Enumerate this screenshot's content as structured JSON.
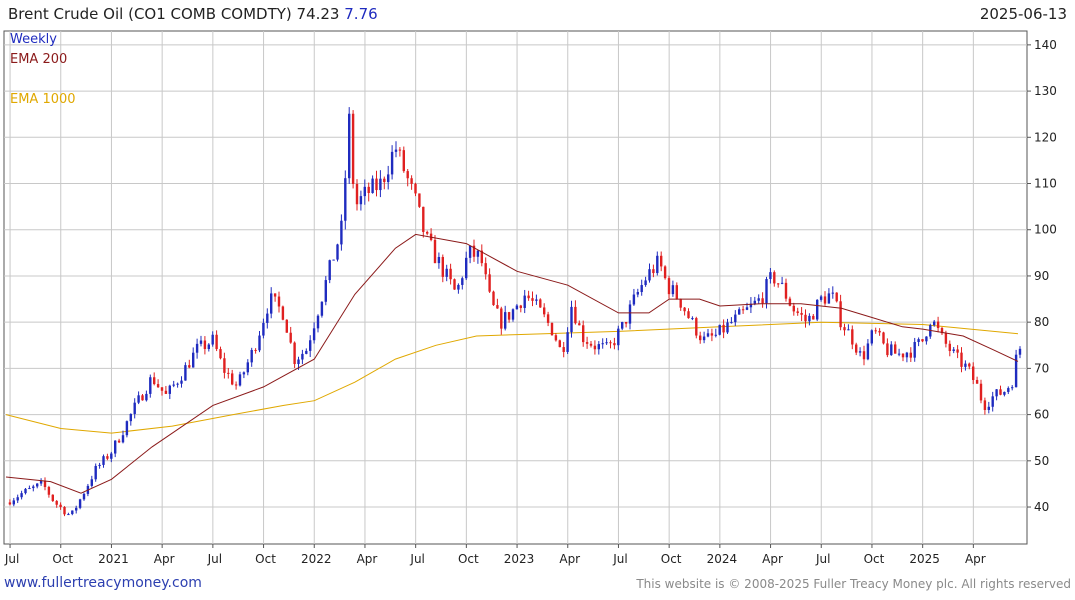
{
  "header": {
    "title": "Brent Crude Oil  (CO1 COMB COMDTY) 74.23",
    "change": "7.76",
    "date": "2025-06-13"
  },
  "legend": {
    "weekly": "Weekly",
    "ema200": "EMA 200",
    "ema1000": "EMA 1000"
  },
  "footer": {
    "url": "www.fullertreacymoney.com",
    "copyright": "This website is © 2008-2025 Fuller Treacy Money plc. All rights reserved"
  },
  "colors": {
    "up": "#1f2bbf",
    "down": "#e02020",
    "ema200": "#8b1a1a",
    "ema1000": "#e0a800",
    "grid": "#c8c8c8"
  },
  "chart_data": {
    "type": "candlestick",
    "ylim": [
      32,
      143
    ],
    "yticks": [
      40,
      50,
      60,
      70,
      80,
      90,
      100,
      110,
      120,
      130,
      140
    ],
    "xlim": [
      2020.48,
      2025.48
    ],
    "xticks": [
      {
        "label": "Jul",
        "x": 2020.5
      },
      {
        "label": "Oct",
        "x": 2020.75
      },
      {
        "label": "2021",
        "x": 2021.0
      },
      {
        "label": "Apr",
        "x": 2021.25
      },
      {
        "label": "Jul",
        "x": 2021.5
      },
      {
        "label": "Oct",
        "x": 2021.75
      },
      {
        "label": "2022",
        "x": 2022.0
      },
      {
        "label": "Apr",
        "x": 2022.25
      },
      {
        "label": "Jul",
        "x": 2022.5
      },
      {
        "label": "Oct",
        "x": 2022.75
      },
      {
        "label": "2023",
        "x": 2023.0
      },
      {
        "label": "Apr",
        "x": 2023.25
      },
      {
        "label": "Jul",
        "x": 2023.5
      },
      {
        "label": "Oct",
        "x": 2023.75
      },
      {
        "label": "2024",
        "x": 2024.0
      },
      {
        "label": "Apr",
        "x": 2024.25
      },
      {
        "label": "Jul",
        "x": 2024.5
      },
      {
        "label": "Oct",
        "x": 2024.75
      },
      {
        "label": "2025",
        "x": 2025.0
      },
      {
        "label": "Apr",
        "x": 2025.25
      }
    ],
    "grid": true,
    "close_path": [
      [
        2020.48,
        41
      ],
      [
        2020.56,
        43
      ],
      [
        2020.66,
        45
      ],
      [
        2020.72,
        41
      ],
      [
        2020.8,
        38
      ],
      [
        2020.85,
        42
      ],
      [
        2020.92,
        48
      ],
      [
        2021.0,
        52
      ],
      [
        2021.05,
        56
      ],
      [
        2021.12,
        62
      ],
      [
        2021.2,
        68
      ],
      [
        2021.27,
        64
      ],
      [
        2021.35,
        69
      ],
      [
        2021.42,
        74
      ],
      [
        2021.5,
        76
      ],
      [
        2021.55,
        70
      ],
      [
        2021.62,
        66
      ],
      [
        2021.7,
        74
      ],
      [
        2021.78,
        85
      ],
      [
        2021.85,
        82
      ],
      [
        2021.9,
        72
      ],
      [
        2021.96,
        74
      ],
      [
        2022.0,
        80
      ],
      [
        2022.08,
        92
      ],
      [
        2022.14,
        101
      ],
      [
        2022.17,
        125
      ],
      [
        2022.2,
        105
      ],
      [
        2022.26,
        108
      ],
      [
        2022.33,
        110
      ],
      [
        2022.4,
        118
      ],
      [
        2022.45,
        112
      ],
      [
        2022.5,
        106
      ],
      [
        2022.55,
        98
      ],
      [
        2022.6,
        94
      ],
      [
        2022.65,
        90
      ],
      [
        2022.7,
        86
      ],
      [
        2022.76,
        95
      ],
      [
        2022.82,
        94
      ],
      [
        2022.87,
        84
      ],
      [
        2022.92,
        80
      ],
      [
        2022.97,
        82
      ],
      [
        2023.04,
        86
      ],
      [
        2023.1,
        83
      ],
      [
        2023.18,
        78
      ],
      [
        2023.22,
        73
      ],
      [
        2023.27,
        84
      ],
      [
        2023.32,
        77
      ],
      [
        2023.38,
        75
      ],
      [
        2023.45,
        74
      ],
      [
        2023.52,
        79
      ],
      [
        2023.58,
        85
      ],
      [
        2023.64,
        90
      ],
      [
        2023.7,
        93
      ],
      [
        2023.74,
        88
      ],
      [
        2023.8,
        85
      ],
      [
        2023.86,
        80
      ],
      [
        2023.92,
        76
      ],
      [
        2023.98,
        77
      ],
      [
        2024.06,
        80
      ],
      [
        2024.12,
        82
      ],
      [
        2024.2,
        85
      ],
      [
        2024.26,
        90
      ],
      [
        2024.3,
        88
      ],
      [
        2024.36,
        83
      ],
      [
        2024.43,
        80
      ],
      [
        2024.5,
        85
      ],
      [
        2024.55,
        86
      ],
      [
        2024.6,
        80
      ],
      [
        2024.66,
        76
      ],
      [
        2024.7,
        72
      ],
      [
        2024.76,
        78
      ],
      [
        2024.82,
        74
      ],
      [
        2024.88,
        73
      ],
      [
        2024.95,
        74
      ],
      [
        2025.0,
        76
      ],
      [
        2025.04,
        81
      ],
      [
        2025.1,
        76
      ],
      [
        2025.17,
        72
      ],
      [
        2025.22,
        70
      ],
      [
        2025.27,
        66
      ],
      [
        2025.3,
        62
      ],
      [
        2025.35,
        64
      ],
      [
        2025.4,
        65
      ],
      [
        2025.44,
        67
      ],
      [
        2025.47,
        74.23
      ]
    ],
    "ema200": [
      [
        2020.48,
        46.5
      ],
      [
        2020.7,
        45.5
      ],
      [
        2020.85,
        43
      ],
      [
        2021.0,
        46
      ],
      [
        2021.2,
        53
      ],
      [
        2021.5,
        62
      ],
      [
        2021.75,
        66
      ],
      [
        2022.0,
        72
      ],
      [
        2022.2,
        86
      ],
      [
        2022.4,
        96
      ],
      [
        2022.5,
        99
      ],
      [
        2022.75,
        97
      ],
      [
        2023.0,
        91
      ],
      [
        2023.25,
        88
      ],
      [
        2023.5,
        82
      ],
      [
        2023.65,
        82
      ],
      [
        2023.75,
        85
      ],
      [
        2023.9,
        85
      ],
      [
        2024.0,
        83.5
      ],
      [
        2024.2,
        84
      ],
      [
        2024.4,
        84
      ],
      [
        2024.6,
        83
      ],
      [
        2024.75,
        81
      ],
      [
        2024.9,
        79
      ],
      [
        2025.0,
        78.5
      ],
      [
        2025.2,
        77
      ],
      [
        2025.35,
        74
      ],
      [
        2025.47,
        71.5
      ]
    ],
    "ema1000": [
      [
        2020.48,
        60
      ],
      [
        2020.75,
        57
      ],
      [
        2021.0,
        56
      ],
      [
        2021.3,
        57.5
      ],
      [
        2021.6,
        60
      ],
      [
        2021.85,
        62
      ],
      [
        2022.0,
        63
      ],
      [
        2022.2,
        67
      ],
      [
        2022.4,
        72
      ],
      [
        2022.6,
        75
      ],
      [
        2022.8,
        77
      ],
      [
        2023.0,
        77.3
      ],
      [
        2023.5,
        78
      ],
      [
        2024.0,
        79
      ],
      [
        2024.5,
        80
      ],
      [
        2025.0,
        79.5
      ],
      [
        2025.47,
        77.5
      ]
    ]
  }
}
